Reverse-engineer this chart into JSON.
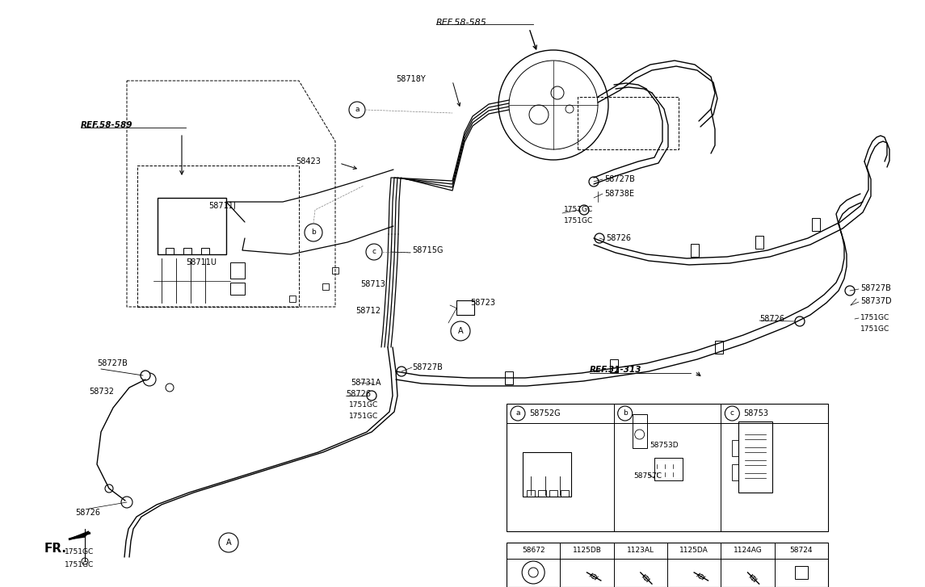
{
  "bg_color": "#ffffff",
  "lc": "#000000",
  "tc": "#000000",
  "fig_w": 11.45,
  "fig_h": 7.27,
  "dpi": 100,
  "xlim": [
    0,
    1145
  ],
  "ylim": [
    0,
    727
  ]
}
